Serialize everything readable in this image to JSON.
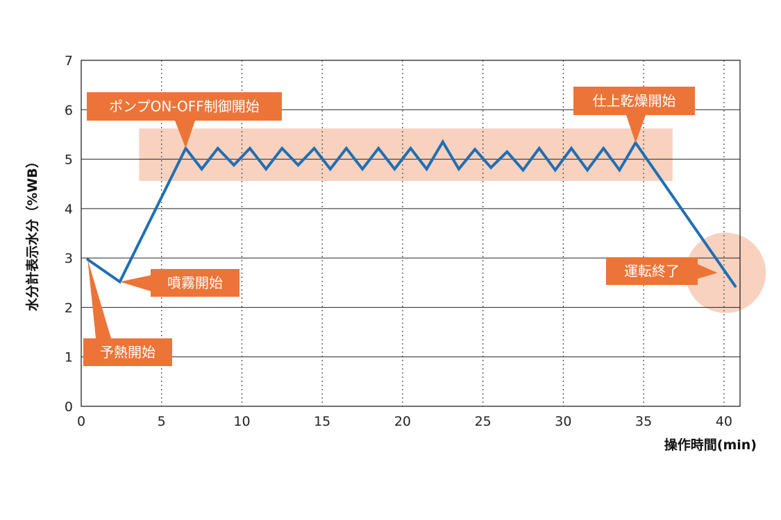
{
  "chart_data": {
    "type": "line",
    "title": "",
    "xlabel": "操作時間(min)",
    "ylabel": "水分計表示水分（%WB）",
    "xlim": [
      0,
      41
    ],
    "ylim": [
      0,
      7
    ],
    "xticks": [
      0,
      5,
      10,
      15,
      20,
      25,
      30,
      35,
      40
    ],
    "yticks": [
      0,
      1,
      2,
      3,
      4,
      5,
      6,
      7
    ],
    "grid": {
      "vertical": "dotted",
      "horizontal": "solid"
    },
    "legend": "none",
    "series": [
      {
        "color": "#1f6fb4",
        "x": [
          0.4,
          2.4,
          6.5,
          7.5,
          8.5,
          9.5,
          10.5,
          11.5,
          12.5,
          13.5,
          14.5,
          15.5,
          16.5,
          17.5,
          18.5,
          19.5,
          20.5,
          21.5,
          22.5,
          23.5,
          24.5,
          25.5,
          26.5,
          27.5,
          28.5,
          29.5,
          30.5,
          31.5,
          32.5,
          33.5,
          34.5,
          40.7
        ],
        "y": [
          2.97,
          2.52,
          5.22,
          4.8,
          5.22,
          4.88,
          5.22,
          4.8,
          5.22,
          4.88,
          5.22,
          4.8,
          5.22,
          4.8,
          5.22,
          4.8,
          5.22,
          4.8,
          5.35,
          4.8,
          5.2,
          4.83,
          5.15,
          4.78,
          5.22,
          4.78,
          5.22,
          4.78,
          5.22,
          4.78,
          5.33,
          2.43
        ]
      }
    ],
    "highlight_band": {
      "x": [
        3.6,
        36.8
      ],
      "y": [
        4.56,
        5.62
      ],
      "color": "#f8d2bf"
    },
    "highlight_circle": {
      "x": 40.1,
      "y": 2.7,
      "color": "#f8d2bf"
    },
    "annotations": [
      {
        "text": "ポンプON-OFF制御開始",
        "target_x": 6.5,
        "target_y": 5.22
      },
      {
        "text": "仕上乾燥開始",
        "target_x": 34.5,
        "target_y": 5.33
      },
      {
        "text": "噴霧開始",
        "target_x": 2.4,
        "target_y": 2.52
      },
      {
        "text": "予熱開始",
        "target_x": 0.4,
        "target_y": 2.97
      },
      {
        "text": "運転終了",
        "target_x": 39.6,
        "target_y": 2.7
      }
    ],
    "callout_color": "#ec7438"
  }
}
